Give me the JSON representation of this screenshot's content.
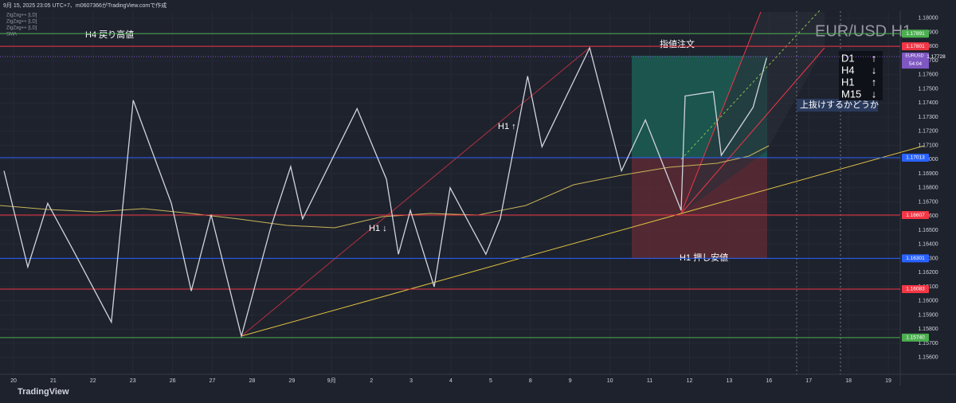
{
  "header": {
    "caption": "9月 15, 2025 23:05 UTC+7、m0607366がTradingView.comで作成",
    "indicators": [
      "ZigZag++ [LD]",
      "ZigZag++ [LD]",
      "ZigZag++ [LD]",
      "SMA"
    ]
  },
  "footer": {
    "brand": "TradingView"
  },
  "chart_data": {
    "type": "line",
    "title": "EUR/USD H1",
    "series": [
      {
        "name": "EURUSD",
        "color": "#d1d4dc",
        "x": [
          -0.24,
          0.36,
          0.86,
          1.46,
          2.46,
          3.01,
          3.97,
          4.47,
          4.97,
          5.73,
          6.47,
          6.97,
          7.27,
          8.64,
          9.38,
          9.68,
          9.98,
          10.58,
          10.98,
          11.88,
          12.24,
          12.93,
          13.29,
          14.49,
          15.29,
          15.89,
          16.79,
          16.89,
          17.6,
          17.8,
          18.6,
          18.94
        ],
        "values": [
          1.1692,
          1.1624,
          1.1669,
          1.1638,
          1.1585,
          1.1742,
          1.1669,
          1.1607,
          1.1661,
          1.1575,
          1.1652,
          1.1695,
          1.1658,
          1.1736,
          1.1686,
          1.1633,
          1.1664,
          1.161,
          1.168,
          1.1633,
          1.1658,
          1.1759,
          1.1709,
          1.1779,
          1.1692,
          1.1728,
          1.1664,
          1.1745,
          1.1748,
          1.1703,
          1.1737,
          1.1772
        ]
      }
    ],
    "xlim": [
      -0.34,
      22.3
    ],
    "xticks": [
      {
        "value": 0,
        "label": "20"
      },
      {
        "value": 1,
        "label": "21"
      },
      {
        "value": 2,
        "label": "22"
      },
      {
        "value": 3,
        "label": "23"
      },
      {
        "value": 4,
        "label": "26"
      },
      {
        "value": 5,
        "label": "27"
      },
      {
        "value": 6,
        "label": "28"
      },
      {
        "value": 7,
        "label": "29"
      },
      {
        "value": 8,
        "label": "9月"
      },
      {
        "value": 9,
        "label": "2"
      },
      {
        "value": 10,
        "label": "3"
      },
      {
        "value": 11,
        "label": "4"
      },
      {
        "value": 12,
        "label": "5"
      },
      {
        "value": 13,
        "label": "8"
      },
      {
        "value": 14,
        "label": "9"
      },
      {
        "value": 15,
        "label": "10"
      },
      {
        "value": 16,
        "label": "11"
      },
      {
        "value": 17,
        "label": "12"
      },
      {
        "value": 18,
        "label": "13"
      },
      {
        "value": 19,
        "label": "16"
      },
      {
        "value": 20,
        "label": "17"
      },
      {
        "value": 21,
        "label": "18"
      },
      {
        "value": 22,
        "label": "19"
      }
    ],
    "ylim": [
      1.1548,
      1.1805
    ],
    "yticks": [
      {
        "value": 1.156,
        "label": "1.15600"
      },
      {
        "value": 1.157,
        "label": "1.15700"
      },
      {
        "value": 1.158,
        "label": "1.15800"
      },
      {
        "value": 1.159,
        "label": "1.15900"
      },
      {
        "value": 1.16,
        "label": "1.16000"
      },
      {
        "value": 1.161,
        "label": "1.16100"
      },
      {
        "value": 1.162,
        "label": "1.16200"
      },
      {
        "value": 1.163,
        "label": "1.16300"
      },
      {
        "value": 1.164,
        "label": "1.16400"
      },
      {
        "value": 1.165,
        "label": "1.16500"
      },
      {
        "value": 1.166,
        "label": "1.16600"
      },
      {
        "value": 1.167,
        "label": "1.16700"
      },
      {
        "value": 1.168,
        "label": "1.16800"
      },
      {
        "value": 1.169,
        "label": "1.16900"
      },
      {
        "value": 1.17,
        "label": "1.17000"
      },
      {
        "value": 1.171,
        "label": "1.17100"
      },
      {
        "value": 1.172,
        "label": "1.17200"
      },
      {
        "value": 1.173,
        "label": "1.17300"
      },
      {
        "value": 1.174,
        "label": "1.17400"
      },
      {
        "value": 1.175,
        "label": "1.17500"
      },
      {
        "value": 1.176,
        "label": "1.17600"
      },
      {
        "value": 1.177,
        "label": "1.17700"
      },
      {
        "value": 1.178,
        "label": "1.17800"
      },
      {
        "value": 1.179,
        "label": "1.17900"
      },
      {
        "value": 1.18,
        "label": "1.18000"
      }
    ],
    "grid": true,
    "levels": {
      "values": [
        1.17891,
        1.17801,
        1.17013,
        1.16607,
        1.16301,
        1.16083,
        1.1574
      ],
      "value_labels": [
        "1.17891",
        "1.17801",
        "1.17013",
        "1.16607",
        "1.16301",
        "1.16083",
        "1.15740"
      ],
      "colors": [
        "#4caf50",
        "#f23645",
        "#2962ff",
        "#f23645",
        "#2962ff",
        "#f23645",
        "#4caf50"
      ]
    },
    "last_price": {
      "symbol": "EURUSD",
      "value": 1.17728,
      "countdown": "54:04",
      "color": "#7e57c2"
    },
    "annotations": {
      "h4_high": "H4 戻り高値",
      "limit_order": "指値注文",
      "h1_up": "H1 ↑",
      "h1_down": "H1 ↓",
      "h1_low": "H1 押し安値",
      "breakout": "上抜けするかどうか"
    },
    "trend_panel": [
      {
        "tf": "D1",
        "arrow": "↑"
      },
      {
        "tf": "H4",
        "arrow": "↓"
      },
      {
        "tf": "H1",
        "arrow": "↑"
      },
      {
        "tf": "M15",
        "arrow": "↓"
      }
    ]
  }
}
